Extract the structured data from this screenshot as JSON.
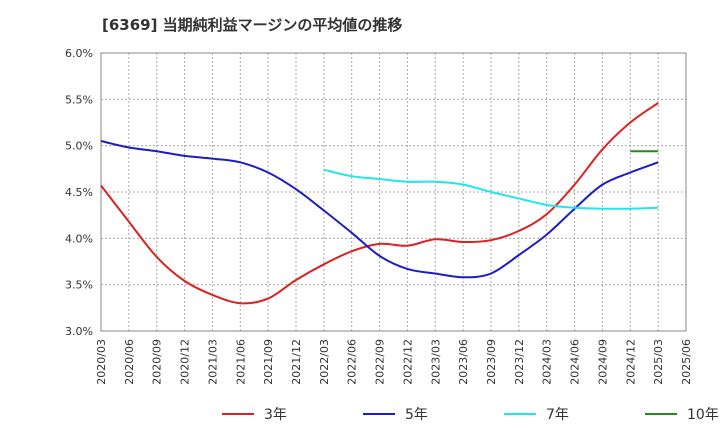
{
  "chart_data": {
    "type": "line",
    "title": "[6369]  当期純利益マージンの平均値の推移",
    "ylim": [
      3.0,
      6.0
    ],
    "y_ticks": [
      "3.0%",
      "3.5%",
      "4.0%",
      "4.5%",
      "5.0%",
      "5.5%",
      "6.0%"
    ],
    "x_ticks": [
      "2020/03",
      "2020/06",
      "2020/09",
      "2020/12",
      "2021/03",
      "2021/06",
      "2021/09",
      "2021/12",
      "2022/03",
      "2022/06",
      "2022/09",
      "2022/12",
      "2023/03",
      "2023/06",
      "2023/09",
      "2023/12",
      "2024/03",
      "2024/06",
      "2024/09",
      "2024/12",
      "2025/03",
      "2025/06"
    ],
    "grid": true,
    "legend_position": "bottom",
    "series": [
      {
        "name": "3年",
        "color": "#dd2222",
        "x": [
          "2020/03",
          "2020/06",
          "2020/09",
          "2020/12",
          "2021/03",
          "2021/06",
          "2021/09",
          "2021/12",
          "2022/03",
          "2022/06",
          "2022/09",
          "2022/12",
          "2023/03",
          "2023/06",
          "2023/09",
          "2023/12",
          "2024/03",
          "2024/06",
          "2024/09",
          "2024/12",
          "2025/03"
        ],
        "values": [
          4.57,
          4.18,
          3.8,
          3.54,
          3.39,
          3.3,
          3.35,
          3.55,
          3.72,
          3.86,
          3.94,
          3.92,
          3.99,
          3.96,
          3.98,
          4.08,
          4.26,
          4.58,
          4.96,
          5.25,
          5.46
        ]
      },
      {
        "name": "5年",
        "color": "#1c1cc8",
        "x": [
          "2020/03",
          "2020/06",
          "2020/09",
          "2020/12",
          "2021/03",
          "2021/06",
          "2021/09",
          "2021/12",
          "2022/03",
          "2022/06",
          "2022/09",
          "2022/12",
          "2023/03",
          "2023/06",
          "2023/09",
          "2023/12",
          "2024/03",
          "2024/06",
          "2024/09",
          "2024/12",
          "2025/03"
        ],
        "values": [
          5.05,
          4.98,
          4.94,
          4.89,
          4.86,
          4.82,
          4.71,
          4.53,
          4.3,
          4.06,
          3.81,
          3.67,
          3.62,
          3.58,
          3.62,
          3.82,
          4.04,
          4.32,
          4.58,
          4.71,
          4.82
        ]
      },
      {
        "name": "7年",
        "color": "#22e5ee",
        "x": [
          "2022/03",
          "2022/06",
          "2022/09",
          "2022/12",
          "2023/03",
          "2023/06",
          "2023/09",
          "2023/12",
          "2024/03",
          "2024/06",
          "2024/09",
          "2024/12",
          "2025/03"
        ],
        "values": [
          4.74,
          4.67,
          4.64,
          4.61,
          4.61,
          4.58,
          4.5,
          4.43,
          4.36,
          4.33,
          4.32,
          4.32,
          4.33
        ]
      },
      {
        "name": "10年",
        "color": "#228b22",
        "x": [
          "2024/12",
          "2025/03"
        ],
        "values": [
          4.94,
          4.94
        ]
      }
    ]
  }
}
